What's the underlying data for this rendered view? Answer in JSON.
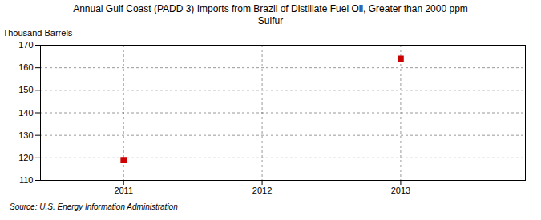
{
  "chart_data": {
    "type": "scatter",
    "title": "Annual Gulf Coast (PADD 3) Imports from Brazil of Distillate Fuel Oil, Greater than 2000 ppm\nSulfur",
    "ylabel": "Thousand Barrels",
    "source": "Source: U.S. Energy Information Administration",
    "x": [
      2011,
      2013
    ],
    "values": [
      119,
      164
    ],
    "xlim": [
      2010.4,
      2013.9
    ],
    "ylim": [
      110,
      170
    ],
    "xticks": [
      2011,
      2012,
      2013
    ],
    "yticks": [
      110,
      120,
      130,
      140,
      150,
      160,
      170
    ],
    "grid": true,
    "color": "#cc0000",
    "marker": "square"
  }
}
